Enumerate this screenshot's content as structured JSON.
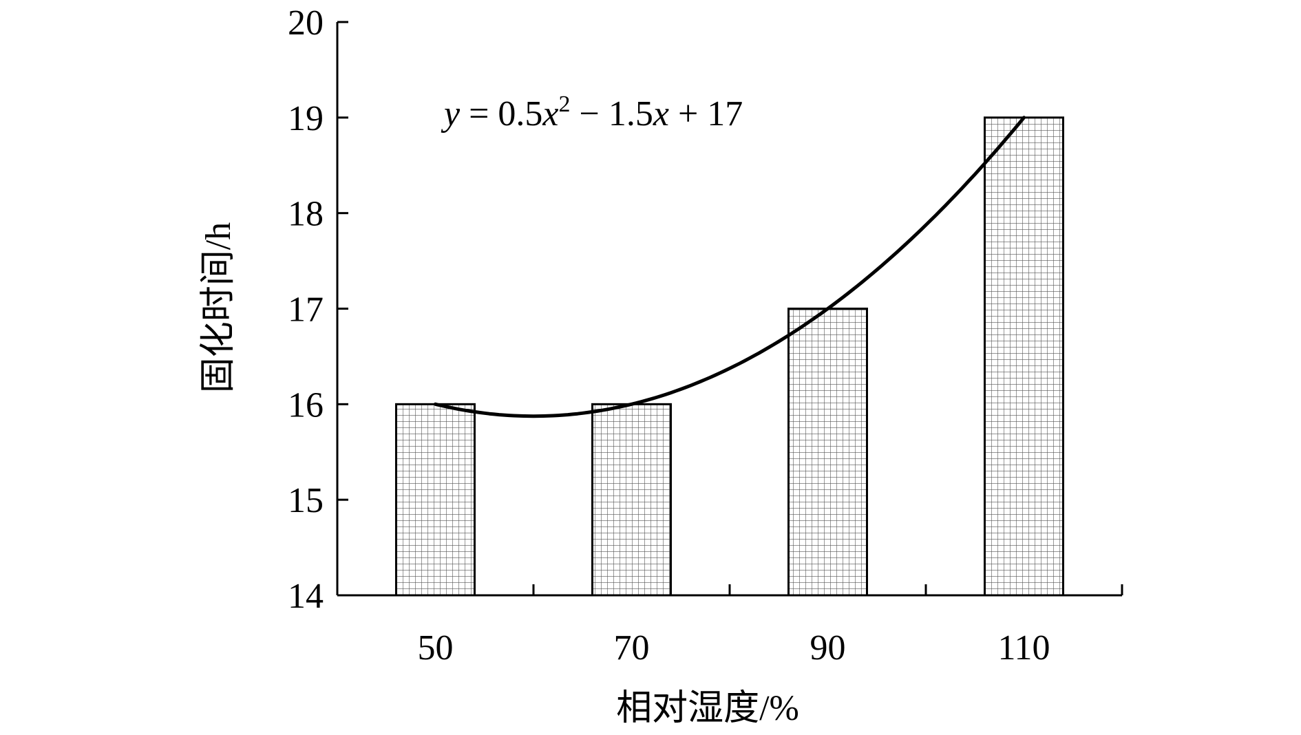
{
  "chart_data": {
    "type": "bar",
    "categories": [
      "50",
      "70",
      "90",
      "110"
    ],
    "values": [
      16,
      16,
      17,
      19
    ],
    "title": "",
    "xlabel": "相对湿度/%",
    "ylabel": "固化时间/h",
    "ylim": [
      14,
      20
    ],
    "yticks": [
      "14",
      "15",
      "16",
      "17",
      "18",
      "19",
      "20"
    ],
    "grid": false,
    "legend": "none",
    "bar_fill": "grid-hatch",
    "trendline": {
      "type": "polynomial",
      "degree": 2,
      "coefficients": {
        "a": 0.5,
        "b": -1.5,
        "c": 17
      },
      "equation": {
        "y": "y",
        "eq": " = 0.5",
        "x1": "x",
        "sup": "2",
        "mid": " − 1.5",
        "x2": "x",
        "tail": " + 17"
      }
    },
    "colors": {
      "axis": "#000000",
      "bar_stroke": "#000000",
      "hatch": "#555555",
      "trend": "#000000"
    }
  }
}
